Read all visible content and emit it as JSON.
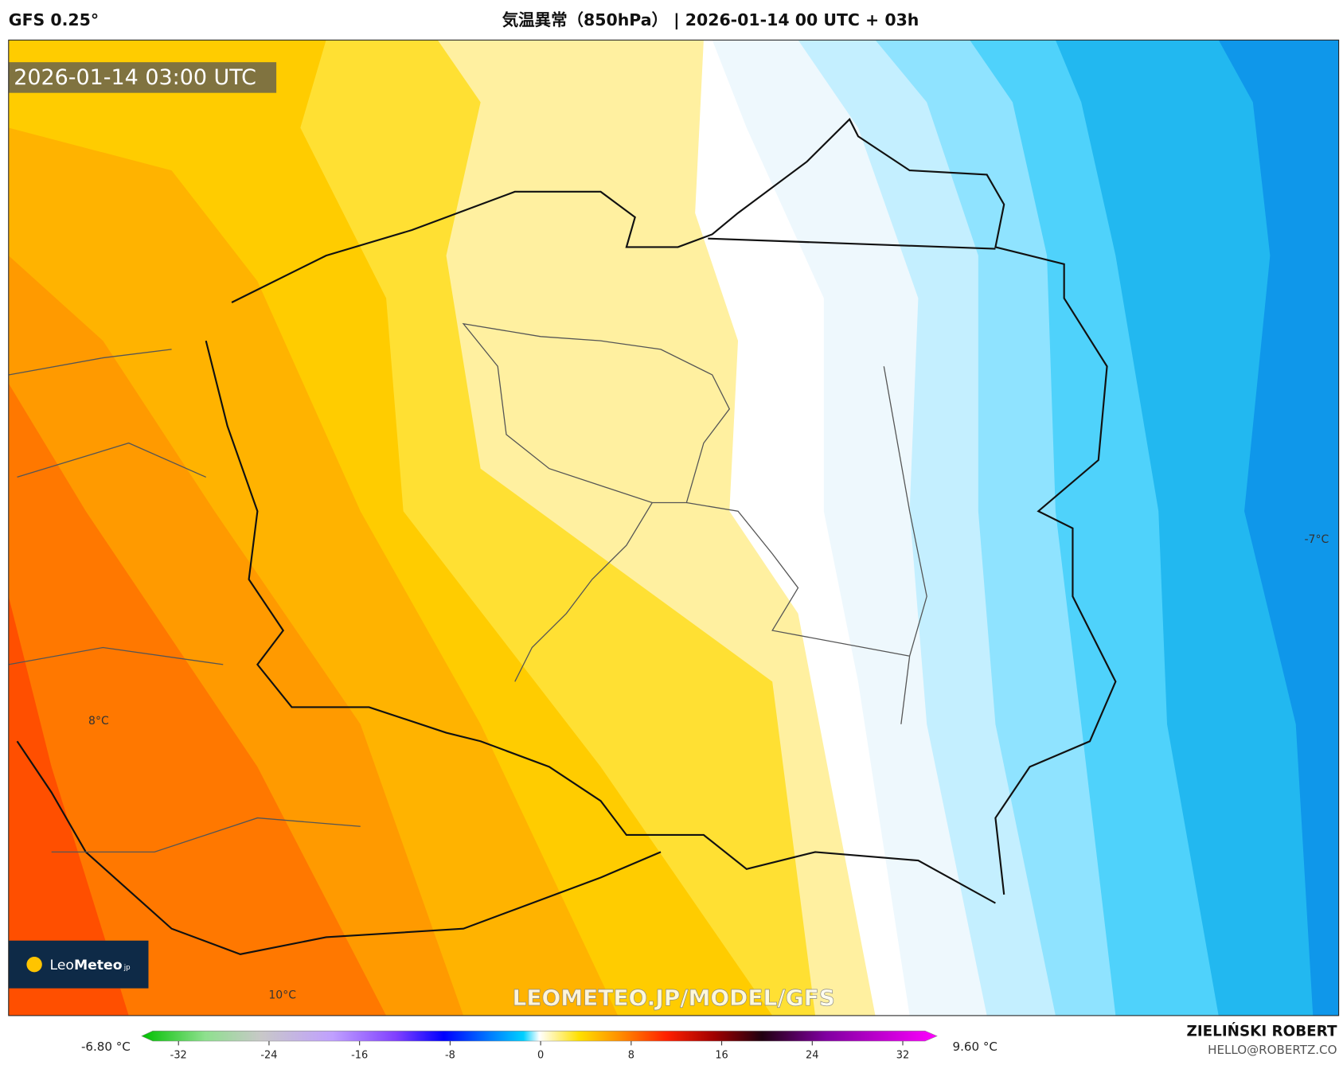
{
  "header": {
    "model": "GFS 0.25°",
    "title": "気温異常（850hPa） | 2026-01-14 00 UTC + 03h"
  },
  "map": {
    "timestamp": "2026-01-14 03:00 UTC",
    "labels": [
      "-7°C",
      "8°C",
      "10°C"
    ],
    "watermark": "LEOMETEO.JP/MODEL/GFS",
    "logo": {
      "leo": "Leo",
      "meteo": "Meteo",
      "suffix": "jp"
    }
  },
  "colorbar": {
    "min_label": "-6.80 °C",
    "max_label": "9.60 °C",
    "ticks": [
      -32,
      -24,
      -16,
      -8,
      0,
      8,
      16,
      24,
      32
    ]
  },
  "footer": {
    "author": "ZIELIŃSKI ROBERT",
    "contact": "HELLO@ROBERTZ.CO"
  }
}
